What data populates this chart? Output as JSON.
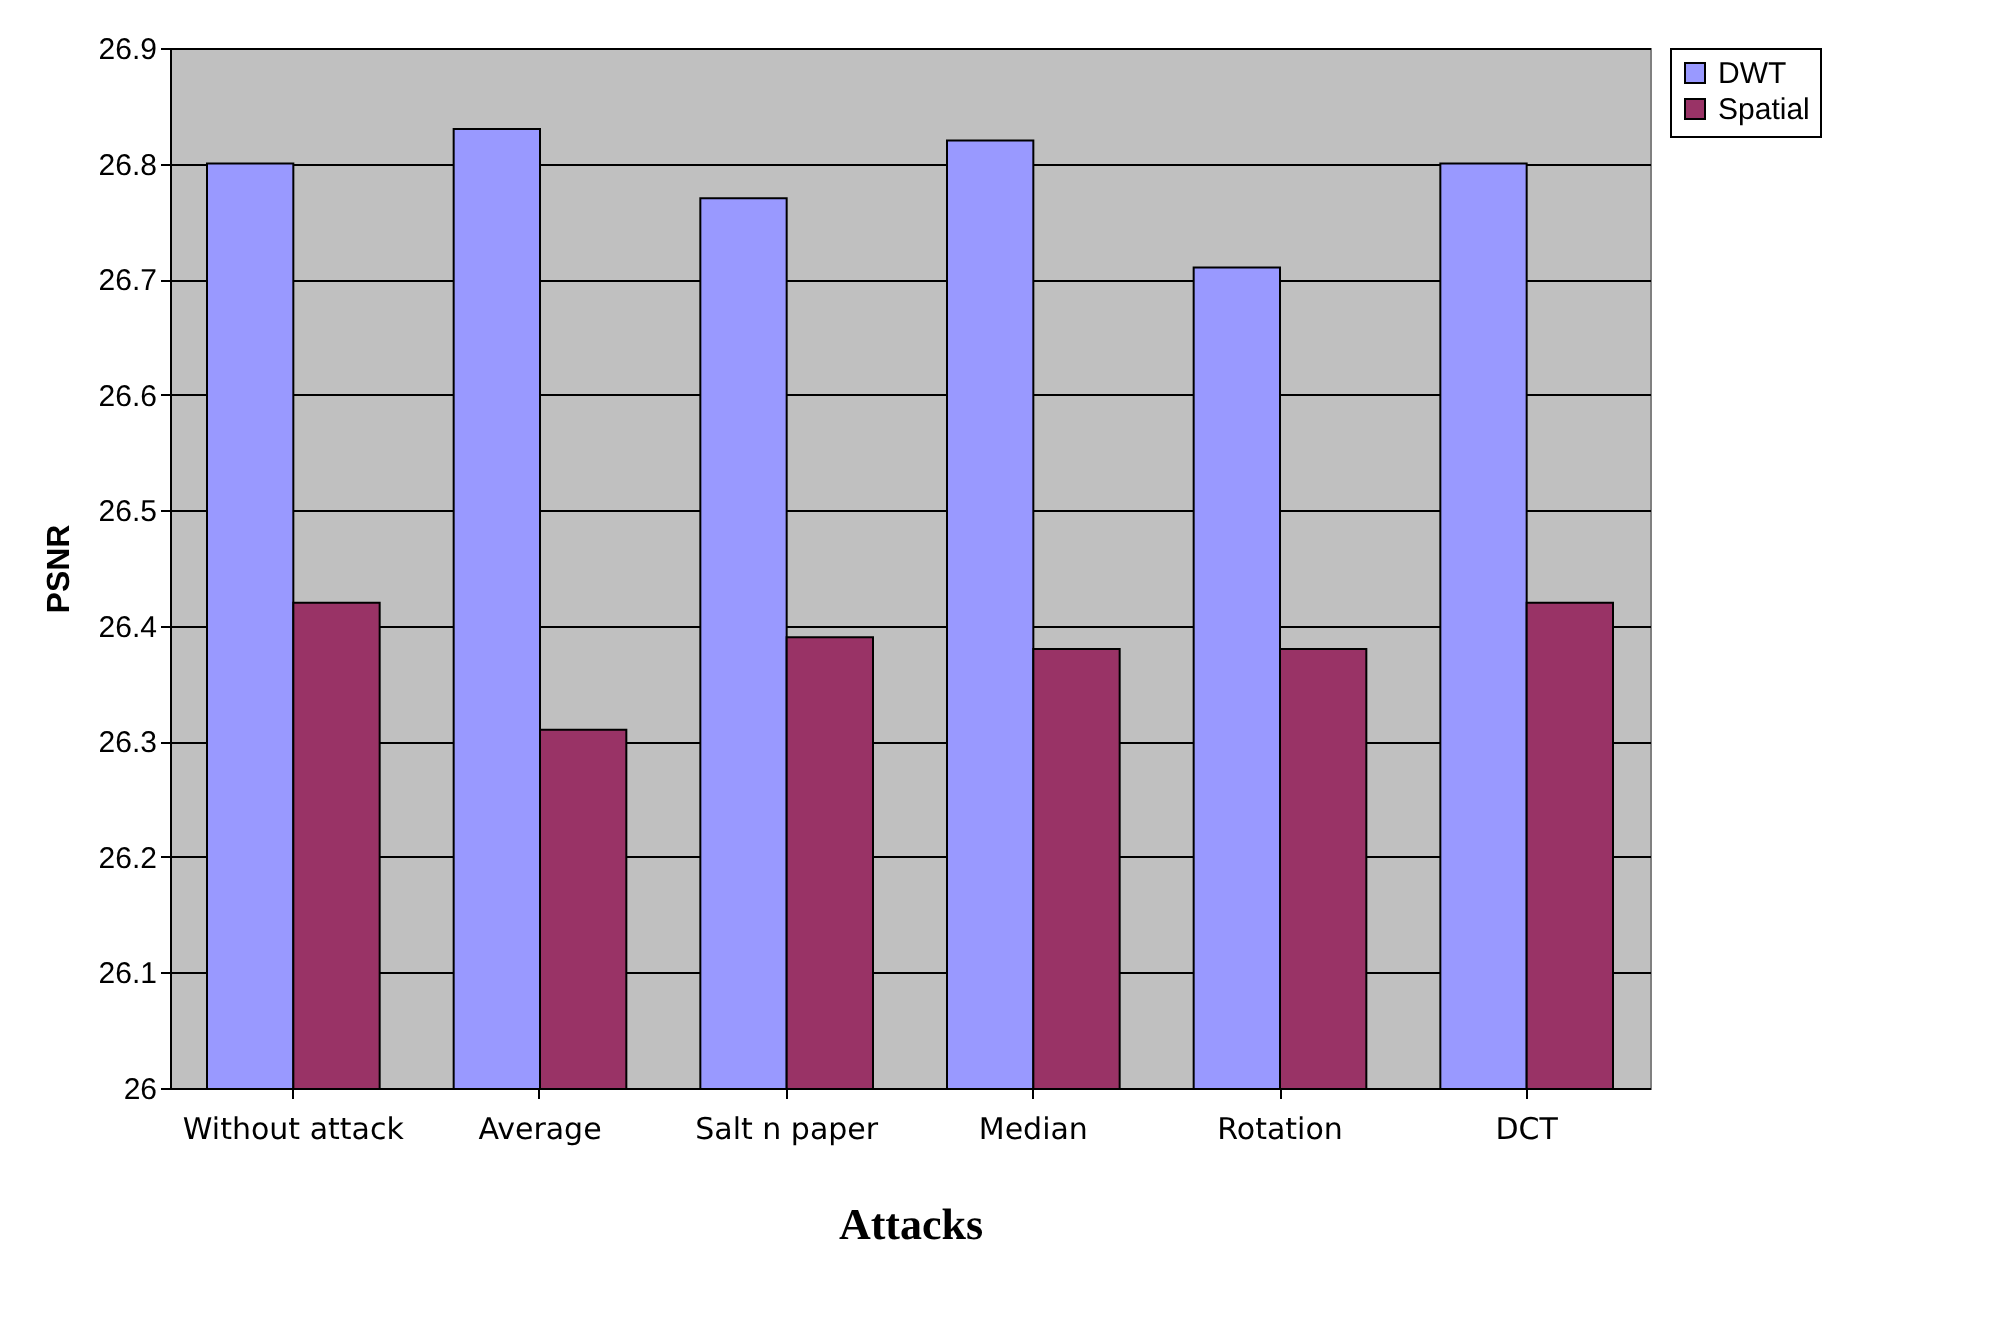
{
  "chart_data": {
    "type": "bar",
    "xlabel": "Attacks",
    "ylabel": "PSNR",
    "categories": [
      "Without attack",
      "Average",
      "Salt n paper",
      "Median",
      "Rotation",
      "DCT"
    ],
    "series": [
      {
        "name": "DWT",
        "color": "#9999ff",
        "values": [
          26.8,
          26.83,
          26.77,
          26.82,
          26.71,
          26.8
        ]
      },
      {
        "name": "Spatial",
        "color": "#993366",
        "values": [
          26.42,
          26.31,
          26.39,
          26.38,
          26.38,
          26.42
        ]
      }
    ],
    "ylim": [
      26,
      26.9
    ],
    "yticks": [
      26,
      26.1,
      26.2,
      26.3,
      26.4,
      26.5,
      26.6,
      26.7,
      26.8,
      26.9
    ],
    "grid": "y",
    "legend": "right"
  }
}
